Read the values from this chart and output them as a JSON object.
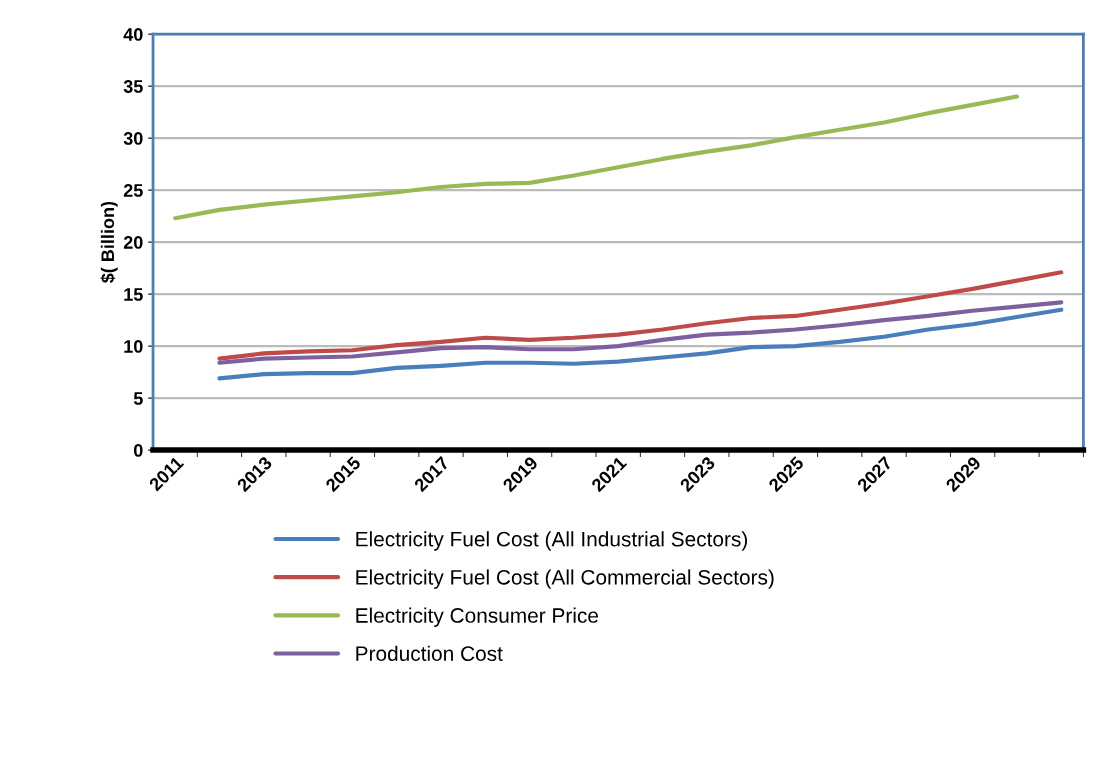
{
  "chart_data": {
    "type": "line",
    "ylabel": "$( Billion)",
    "categories": [
      "2011",
      null,
      "2013",
      null,
      "2015",
      null,
      "2017",
      null,
      "2019",
      null,
      "2021",
      null,
      "2023",
      null,
      "2025",
      null,
      "2027",
      null,
      "2029",
      null,
      null
    ],
    "series": [
      {
        "name": "Electricity Fuel Cost (All Industrial Sectors)",
        "color": "#4a7ebb",
        "values": [
          null,
          6.9,
          7.3,
          7.4,
          7.4,
          7.9,
          8.1,
          8.4,
          8.4,
          8.3,
          8.5,
          8.9,
          9.3,
          9.9,
          10.0,
          10.4,
          10.9,
          11.6,
          12.1,
          12.8,
          13.5
        ]
      },
      {
        "name": "Electricity Fuel Cost (All Commercial Sectors)",
        "color": "#be4b48",
        "values": [
          null,
          8.8,
          9.3,
          9.5,
          9.6,
          10.1,
          10.4,
          10.8,
          10.6,
          10.8,
          11.1,
          11.6,
          12.2,
          12.7,
          12.9,
          13.5,
          14.1,
          14.8,
          15.5,
          16.3,
          17.1
        ]
      },
      {
        "name": "Electricity Consumer Price",
        "color": "#98b954",
        "values": [
          22.3,
          23.1,
          23.6,
          24.0,
          24.4,
          24.8,
          25.3,
          25.6,
          25.7,
          26.4,
          27.2,
          28.0,
          28.7,
          29.3,
          30.1,
          30.8,
          31.5,
          32.4,
          33.2,
          34.0,
          null
        ]
      },
      {
        "name": "Production Cost",
        "color": "#7d60a0",
        "values": [
          null,
          8.4,
          8.8,
          8.9,
          9.0,
          9.4,
          9.8,
          9.9,
          9.7,
          9.7,
          10.0,
          10.6,
          11.1,
          11.3,
          11.6,
          12.0,
          12.5,
          12.9,
          13.4,
          13.8,
          14.2
        ]
      }
    ],
    "ylim": [
      0,
      40
    ],
    "yticks": [
      0,
      5,
      10,
      15,
      20,
      25,
      30,
      35,
      40
    ],
    "grid": "y",
    "legend": "bottom"
  }
}
